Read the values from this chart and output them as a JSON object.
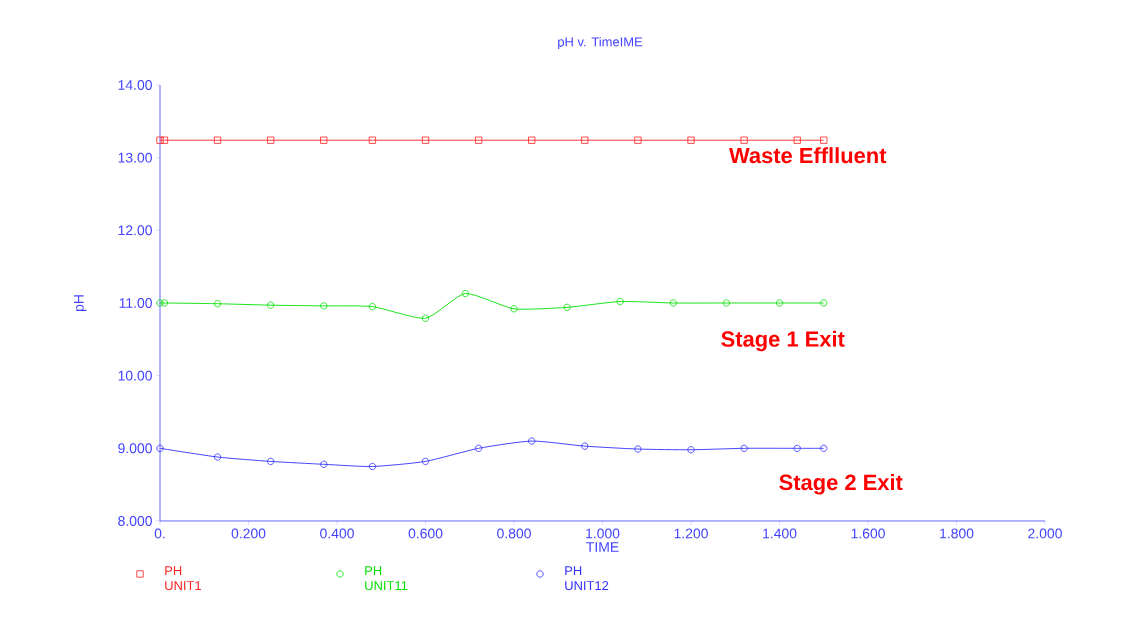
{
  "chart_data": {
    "type": "line",
    "title": "pH v. TimeIME",
    "xlabel": "TIME",
    "ylabel": "pH",
    "xlim": [
      0,
      2
    ],
    "ylim": [
      8,
      14
    ],
    "xticks": [
      {
        "value": 0,
        "label": "0."
      },
      {
        "value": 0.2,
        "label": "0.200"
      },
      {
        "value": 0.4,
        "label": "0.400"
      },
      {
        "value": 0.6,
        "label": "0.600"
      },
      {
        "value": 0.8,
        "label": "0.800"
      },
      {
        "value": 1.0,
        "label": "1.000"
      },
      {
        "value": 1.2,
        "label": "1.200"
      },
      {
        "value": 1.4,
        "label": "1.400"
      },
      {
        "value": 1.6,
        "label": "1.600"
      },
      {
        "value": 1.8,
        "label": "1.800"
      },
      {
        "value": 2.0,
        "label": "2.000"
      }
    ],
    "yticks": [
      {
        "value": 8,
        "label": "8.000"
      },
      {
        "value": 9,
        "label": "9.000"
      },
      {
        "value": 10,
        "label": "10.00"
      },
      {
        "value": 11,
        "label": "11.00"
      },
      {
        "value": 12,
        "label": "12.00"
      },
      {
        "value": 13,
        "label": "13.00"
      },
      {
        "value": 14,
        "label": "14.00"
      }
    ],
    "grid": false,
    "legend": "bottom",
    "line_style": "solid",
    "series": [
      {
        "name": "PH UNIT1",
        "color": "#ff2020",
        "marker": "square",
        "x": [
          0,
          0.01,
          0.13,
          0.25,
          0.37,
          0.48,
          0.6,
          0.72,
          0.84,
          0.96,
          1.08,
          1.2,
          1.32,
          1.44,
          1.5
        ],
        "values": [
          13.24,
          13.24,
          13.24,
          13.24,
          13.24,
          13.24,
          13.24,
          13.24,
          13.24,
          13.24,
          13.24,
          13.24,
          13.24,
          13.24,
          13.24
        ]
      },
      {
        "name": "PH UNIT11",
        "color": "#00e000",
        "marker": "circle",
        "x": [
          0,
          0.01,
          0.13,
          0.25,
          0.37,
          0.48,
          0.6,
          0.69,
          0.8,
          0.92,
          1.04,
          1.16,
          1.28,
          1.4,
          1.5
        ],
        "values": [
          11.0,
          11.0,
          10.99,
          10.97,
          10.96,
          10.95,
          10.79,
          11.13,
          10.92,
          10.94,
          11.02,
          11.0,
          11.0,
          11.0,
          11.0
        ]
      },
      {
        "name": "PH UNIT12",
        "color": "#3030ff",
        "marker": "circle",
        "x": [
          0,
          0.13,
          0.25,
          0.37,
          0.48,
          0.6,
          0.72,
          0.84,
          0.96,
          1.08,
          1.2,
          1.32,
          1.44,
          1.5
        ],
        "values": [
          9.0,
          8.88,
          8.82,
          8.78,
          8.75,
          8.82,
          9.0,
          9.1,
          9.03,
          8.99,
          8.98,
          9.0,
          9.0,
          9.0
        ]
      }
    ],
    "annotations": [
      "Waste Efflluent",
      "Stage 1 Exit",
      "Stage 2 Exit"
    ]
  }
}
